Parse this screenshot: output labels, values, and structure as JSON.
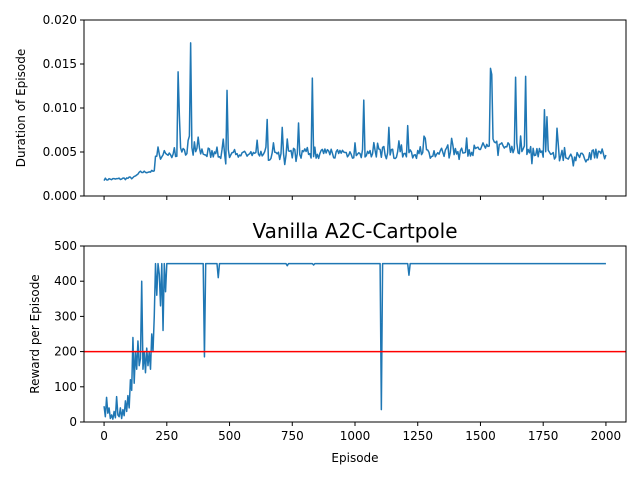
{
  "chart_data": [
    {
      "type": "line",
      "title": "",
      "xlabel": "",
      "ylabel": "Duration of Episode",
      "xlim": [
        -80,
        2080
      ],
      "ylim": [
        0,
        0.02
      ],
      "xticks": [
        0,
        250,
        500,
        750,
        1000,
        1250,
        1500,
        1750,
        2000
      ],
      "xtick_labels_visible": false,
      "yticks": [
        0.0,
        0.005,
        0.01,
        0.015,
        0.02
      ],
      "ytick_labels": [
        "0.000",
        "0.005",
        "0.010",
        "0.015",
        "0.020"
      ],
      "grid": false,
      "color": "#1f77b4",
      "series": [
        {
          "baseline_segments": [
            [
              0,
              0.0019
            ],
            [
              40,
              0.0019
            ],
            [
              90,
              0.002
            ],
            [
              120,
              0.0021
            ],
            [
              145,
              0.0027
            ],
            [
              200,
              0.0028
            ],
            [
              210,
              0.0045
            ],
            [
              300,
              0.005
            ],
            [
              600,
              0.0046
            ],
            [
              900,
              0.0049
            ],
            [
              1200,
              0.0047
            ],
            [
              1450,
              0.005
            ],
            [
              1550,
              0.0058
            ],
            [
              1700,
              0.0052
            ],
            [
              1800,
              0.0046
            ],
            [
              1900,
              0.0046
            ],
            [
              2000,
              0.0048
            ]
          ],
          "spikes": [
            [
              295,
              0.0141
            ],
            [
              300,
              0.0092
            ],
            [
              345,
              0.0174
            ],
            [
              490,
              0.012
            ],
            [
              650,
              0.0087
            ],
            [
              710,
              0.0078
            ],
            [
              775,
              0.0083
            ],
            [
              830,
              0.0134
            ],
            [
              1035,
              0.0109
            ],
            [
              1135,
              0.0078
            ],
            [
              1210,
              0.008
            ],
            [
              1275,
              0.0068
            ],
            [
              1540,
              0.0145
            ],
            [
              1545,
              0.0138
            ],
            [
              1640,
              0.0135
            ],
            [
              1680,
              0.0136
            ],
            [
              1755,
              0.0098
            ],
            [
              1765,
              0.009
            ],
            [
              1805,
              0.0077
            ]
          ]
        }
      ]
    },
    {
      "type": "line",
      "title": "Vanilla A2C-Cartpole",
      "xlabel": "Episode",
      "ylabel": "Reward per Episode",
      "xlim": [
        -80,
        2080
      ],
      "ylim": [
        0,
        500
      ],
      "xticks": [
        0,
        250,
        500,
        750,
        1000,
        1250,
        1500,
        1750,
        2000
      ],
      "xtick_labels": [
        "0",
        "250",
        "500",
        "750",
        "1000",
        "1250",
        "1500",
        "1750",
        "2000"
      ],
      "yticks": [
        0,
        100,
        200,
        300,
        400,
        500
      ],
      "ytick_labels": [
        "0",
        "100",
        "200",
        "300",
        "400",
        "500"
      ],
      "grid": false,
      "color": "#1f77b4",
      "threshold": {
        "y": 200,
        "color": "#ff0000"
      },
      "series": [
        {
          "points": [
            [
              0,
              45
            ],
            [
              5,
              15
            ],
            [
              10,
              70
            ],
            [
              15,
              25
            ],
            [
              20,
              40
            ],
            [
              25,
              10
            ],
            [
              30,
              20
            ],
            [
              35,
              8
            ],
            [
              40,
              30
            ],
            [
              45,
              12
            ],
            [
              50,
              72
            ],
            [
              55,
              20
            ],
            [
              60,
              15
            ],
            [
              65,
              40
            ],
            [
              70,
              10
            ],
            [
              75,
              35
            ],
            [
              80,
              18
            ],
            [
              85,
              60
            ],
            [
              90,
              30
            ],
            [
              95,
              75
            ],
            [
              100,
              40
            ],
            [
              105,
              120
            ],
            [
              110,
              90
            ],
            [
              115,
              240
            ],
            [
              120,
              110
            ],
            [
              125,
              200
            ],
            [
              130,
              150
            ],
            [
              135,
              230
            ],
            [
              140,
              160
            ],
            [
              145,
              180
            ],
            [
              150,
              400
            ],
            [
              155,
              150
            ],
            [
              160,
              200
            ],
            [
              165,
              140
            ],
            [
              170,
              210
            ],
            [
              175,
              160
            ],
            [
              180,
              200
            ],
            [
              185,
              150
            ],
            [
              190,
              250
            ],
            [
              195,
              200
            ],
            [
              200,
              300
            ],
            [
              205,
              450
            ],
            [
              210,
              360
            ],
            [
              215,
              450
            ],
            [
              220,
              420
            ],
            [
              225,
              330
            ],
            [
              230,
              450
            ],
            [
              235,
              260
            ],
            [
              240,
              450
            ],
            [
              245,
              370
            ],
            [
              250,
              450
            ],
            [
              395,
              450
            ],
            [
              400,
              185
            ],
            [
              405,
              450
            ],
            [
              450,
              450
            ],
            [
              455,
              410
            ],
            [
              460,
              450
            ],
            [
              725,
              450
            ],
            [
              730,
              444
            ],
            [
              735,
              450
            ],
            [
              830,
              450
            ],
            [
              835,
              446
            ],
            [
              840,
              450
            ],
            [
              1100,
              450
            ],
            [
              1105,
              35
            ],
            [
              1110,
              450
            ],
            [
              1210,
              450
            ],
            [
              1215,
              417
            ],
            [
              1220,
              450
            ],
            [
              2000,
              450
            ]
          ]
        }
      ]
    }
  ]
}
